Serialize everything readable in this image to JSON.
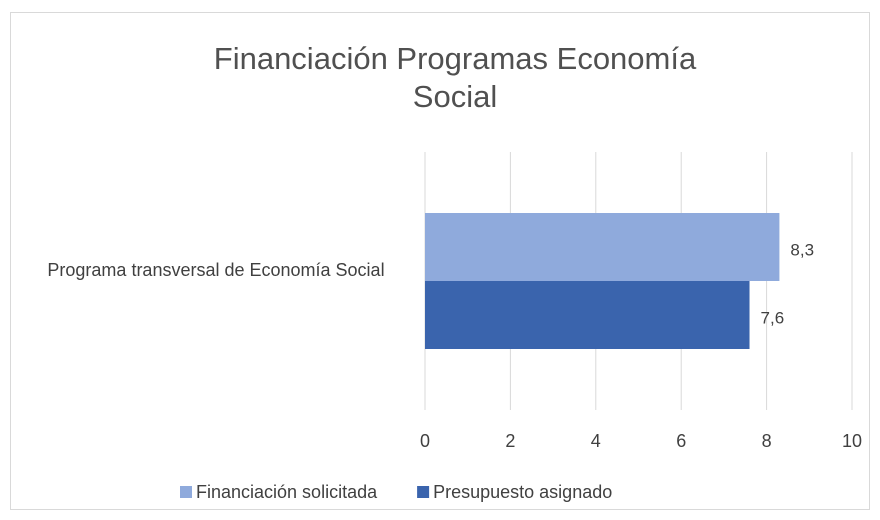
{
  "chart_data": {
    "type": "bar",
    "orientation": "horizontal",
    "title": "Financiación Programas Economía Social",
    "categories": [
      "Programa transversal de Economía Social"
    ],
    "series": [
      {
        "name": "Financiación solicitada",
        "color": "#8faadc",
        "values": [
          8.3
        ],
        "value_labels": [
          "8,3"
        ]
      },
      {
        "name": "Presupuesto asignado",
        "color": "#3a64ad",
        "values": [
          7.6
        ],
        "value_labels": [
          "7,6"
        ]
      }
    ],
    "xlim": [
      0,
      10
    ],
    "xticks": [
      0,
      2,
      4,
      6,
      8,
      10
    ],
    "grid": true,
    "legend": "bottom"
  }
}
